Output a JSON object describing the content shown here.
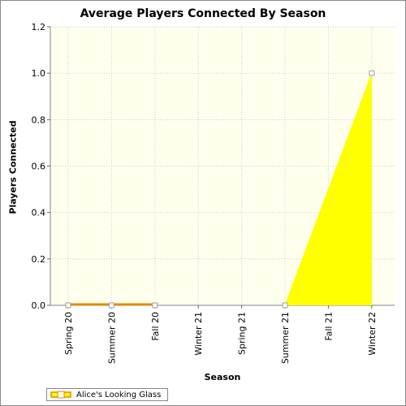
{
  "chart_data": {
    "type": "area",
    "title": "Average Players Connected By Season",
    "xlabel": "Season",
    "ylabel": "Players Connected",
    "categories": [
      "Spring 20",
      "Summer 20",
      "Fall 20",
      "Winter 21",
      "Spring 21",
      "Summer 21",
      "Fall 21",
      "Winter 22"
    ],
    "yticks": [
      "0.0",
      "0.2",
      "0.4",
      "0.6",
      "0.8",
      "1.0",
      "1.2"
    ],
    "ylim": [
      0,
      1.2
    ],
    "grid": true,
    "legend_position": "bottom-left",
    "series": [
      {
        "name": "Alice's Looking Glass",
        "values": [
          0,
          0,
          0,
          null,
          null,
          0,
          null,
          1.0
        ],
        "marker_indices": [
          0,
          1,
          2,
          5,
          7
        ],
        "fill_color": "#ffff00",
        "line_color": "#ff9900"
      }
    ]
  },
  "colors": {
    "plot_background": "#ffffee",
    "gridline": "#cccccc",
    "fill": "#ffff00",
    "line": "#e08a00"
  }
}
